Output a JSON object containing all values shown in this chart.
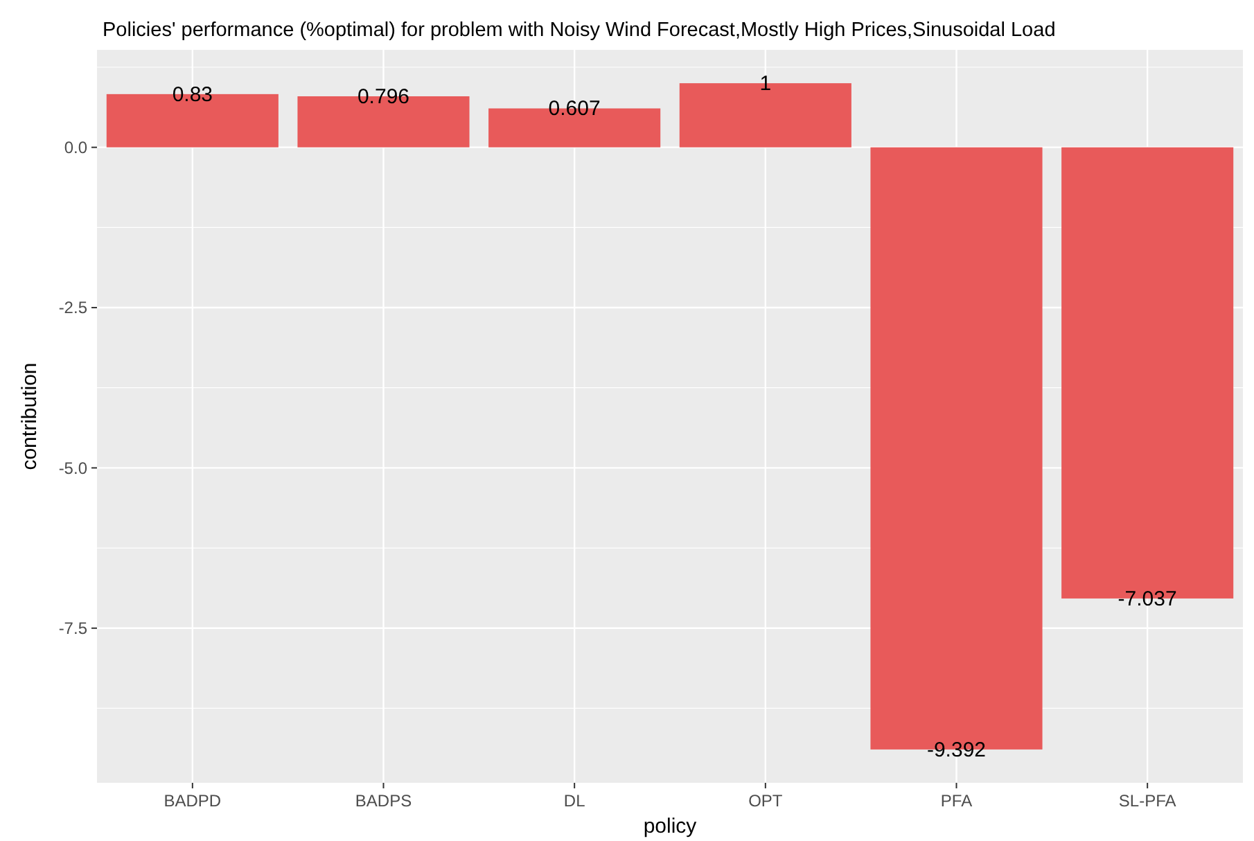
{
  "chart_data": {
    "type": "bar",
    "title": "Policies' performance (%optimal) for problem with Noisy Wind Forecast,Mostly High Prices,Sinusoidal Load",
    "xlabel": "policy",
    "ylabel": "contribution",
    "categories": [
      "BADPD",
      "BADPS",
      "DL",
      "OPT",
      "PFA",
      "SL-PFA"
    ],
    "values": [
      0.83,
      0.796,
      0.607,
      1,
      -9.392,
      -7.037
    ],
    "color": "#e85a5a",
    "ylim": [
      -9.912,
      1.52
    ],
    "yticks": [
      {
        "value": -7.5,
        "label": "-7.5"
      },
      {
        "value": -5,
        "label": "-5.0"
      },
      {
        "value": -2.5,
        "label": "-2.5"
      },
      {
        "value": 0,
        "label": "0.0"
      }
    ],
    "grid": true,
    "data_labels": true
  }
}
